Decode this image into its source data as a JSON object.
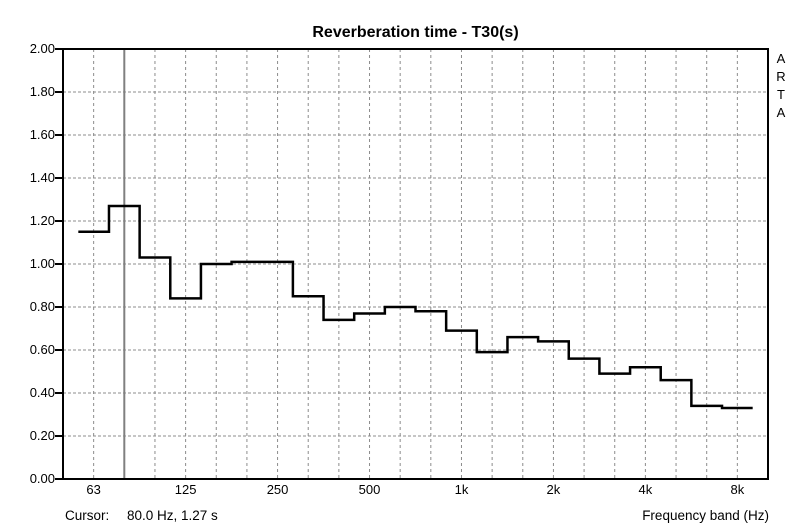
{
  "window": {
    "background": "#ffffff"
  },
  "header": {
    "title": "Reverberation time - T30(s)"
  },
  "watermark": {
    "text": "ARTA"
  },
  "status_bar": {
    "cursor_label": "Cursor:",
    "cursor_value": "80.0 Hz, 1.27 s",
    "axis_label": "Frequency band (Hz)"
  },
  "colors": {
    "line": "#000000",
    "frame": "#000000",
    "grid": "#8c8c8c",
    "cursor_line": "#808080",
    "text": "#000000",
    "background": "#ffffff"
  },
  "chart_data": {
    "type": "line",
    "line_style": "step-centered-third-octave-bands",
    "title": "Reverberation time - T30(s)",
    "xlabel": "Frequency band (Hz)",
    "ylabel": "",
    "ylim": [
      0.0,
      2.0
    ],
    "ytick_step": 0.2,
    "grid": true,
    "frequencies_hz": [
      63,
      80,
      100,
      125,
      160,
      200,
      250,
      315,
      400,
      500,
      630,
      800,
      1000,
      1250,
      1600,
      2000,
      2500,
      3150,
      4000,
      5000,
      6300,
      8000
    ],
    "categories": [
      "63",
      "80",
      "100",
      "125",
      "160",
      "200",
      "250",
      "315",
      "400",
      "500",
      "630",
      "800",
      "1k",
      "1.25k",
      "1.6k",
      "2k",
      "2.5k",
      "3.15k",
      "4k",
      "5k",
      "6.3k",
      "8k"
    ],
    "values": [
      1.15,
      1.27,
      1.03,
      0.84,
      1.0,
      1.01,
      1.01,
      0.85,
      0.74,
      0.77,
      0.8,
      0.78,
      0.69,
      0.59,
      0.66,
      0.64,
      0.56,
      0.49,
      0.52,
      0.46,
      0.34,
      0.33
    ],
    "y_tick_labels": [
      "2.00",
      "1.80",
      "1.60",
      "1.40",
      "1.20",
      "1.00",
      "0.80",
      "0.60",
      "0.40",
      "0.20",
      "0.00"
    ],
    "x_tick_labels": [
      {
        "label": "63",
        "band_index": 0
      },
      {
        "label": "125",
        "band_index": 3
      },
      {
        "label": "250",
        "band_index": 6
      },
      {
        "label": "500",
        "band_index": 9
      },
      {
        "label": "1k",
        "band_index": 12
      },
      {
        "label": "2k",
        "band_index": 15
      },
      {
        "label": "4k",
        "band_index": 18
      },
      {
        "label": "8k",
        "band_index": 21
      }
    ],
    "cursor": {
      "band_index": 1,
      "frequency_hz": 80.0,
      "value_s": 1.27
    }
  }
}
